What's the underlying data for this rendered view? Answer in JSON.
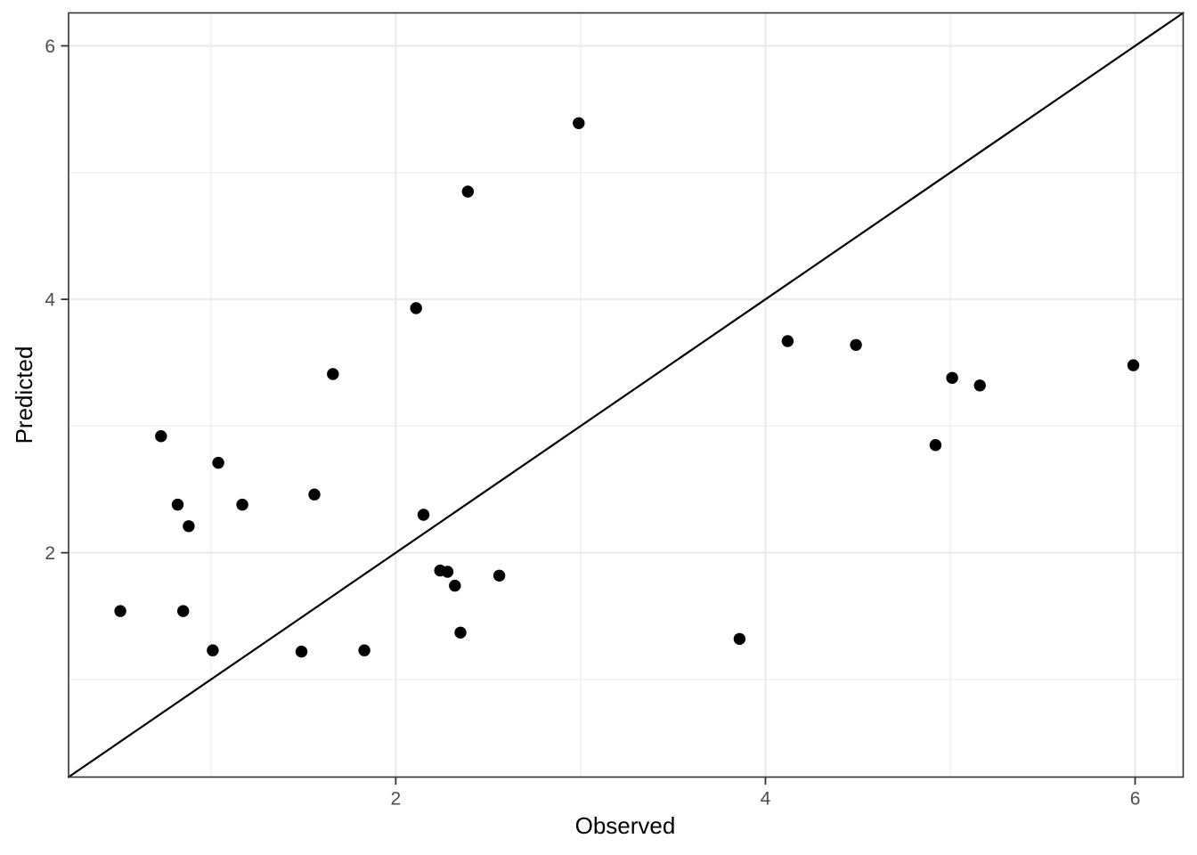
{
  "chart_data": {
    "type": "scatter",
    "title": "",
    "xlabel": "Observed",
    "ylabel": "Predicted",
    "xlim": [
      0.23,
      6.26
    ],
    "ylim": [
      0.23,
      6.26
    ],
    "x_major_ticks": [
      2,
      4,
      6
    ],
    "y_major_ticks": [
      2,
      4,
      6
    ],
    "x_minor_gridlines": [
      1,
      3,
      5
    ],
    "y_minor_gridlines": [
      1,
      3,
      5
    ],
    "grid": "on",
    "legend": "none",
    "reference_line": {
      "kind": "identity",
      "slope": 1,
      "intercept": 0
    },
    "points": [
      {
        "x": 0.51,
        "y": 1.54
      },
      {
        "x": 0.73,
        "y": 2.92
      },
      {
        "x": 0.82,
        "y": 2.38
      },
      {
        "x": 0.85,
        "y": 1.54
      },
      {
        "x": 0.88,
        "y": 2.21
      },
      {
        "x": 1.01,
        "y": 1.23
      },
      {
        "x": 1.04,
        "y": 2.71
      },
      {
        "x": 1.17,
        "y": 2.38
      },
      {
        "x": 1.49,
        "y": 1.22
      },
      {
        "x": 1.56,
        "y": 2.46
      },
      {
        "x": 1.66,
        "y": 3.41
      },
      {
        "x": 1.83,
        "y": 1.23
      },
      {
        "x": 2.11,
        "y": 3.93
      },
      {
        "x": 2.15,
        "y": 2.3
      },
      {
        "x": 2.24,
        "y": 1.86
      },
      {
        "x": 2.28,
        "y": 1.85
      },
      {
        "x": 2.32,
        "y": 1.74
      },
      {
        "x": 2.35,
        "y": 1.37
      },
      {
        "x": 2.39,
        "y": 4.85
      },
      {
        "x": 2.56,
        "y": 1.82
      },
      {
        "x": 2.99,
        "y": 5.39
      },
      {
        "x": 3.86,
        "y": 1.32
      },
      {
        "x": 4.12,
        "y": 3.67
      },
      {
        "x": 4.49,
        "y": 3.64
      },
      {
        "x": 4.92,
        "y": 2.85
      },
      {
        "x": 5.01,
        "y": 3.38
      },
      {
        "x": 5.16,
        "y": 3.32
      },
      {
        "x": 5.99,
        "y": 3.48
      }
    ]
  },
  "colors": {
    "background": "#FFFFFF",
    "panel_background": "#FFFFFF",
    "grid_major": "#EBEBEB",
    "grid_minor": "#EDEDED",
    "panel_border": "#333333",
    "tick_mark": "#333333",
    "tick_text": "#4D4D4D",
    "point": "#000000",
    "reference_line": "#000000",
    "axis_title": "#000000"
  }
}
